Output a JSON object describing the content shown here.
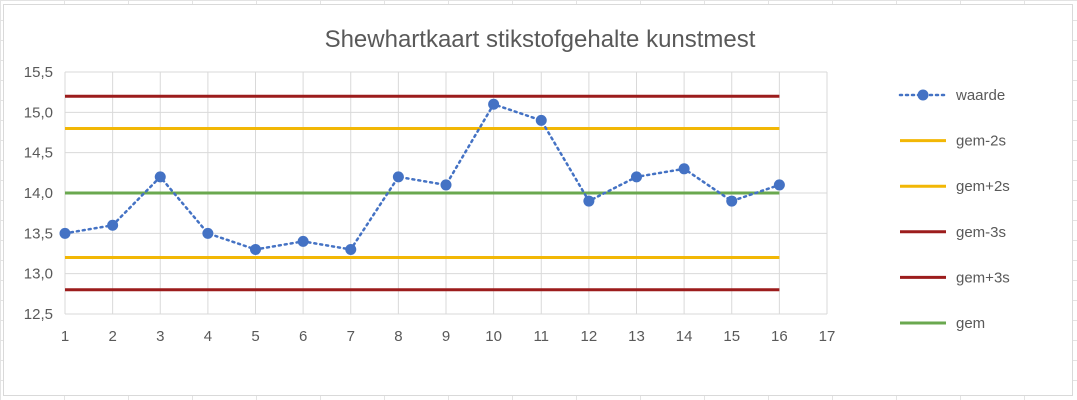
{
  "chart_data": {
    "type": "line",
    "title": "Shewhartkaart stikstofgehalte kunstmest",
    "xlabel": "",
    "ylabel": "",
    "x": [
      1,
      2,
      3,
      4,
      5,
      6,
      7,
      8,
      9,
      10,
      11,
      12,
      13,
      14,
      15,
      16
    ],
    "x_ticks": [
      "1",
      "2",
      "3",
      "4",
      "5",
      "6",
      "7",
      "8",
      "9",
      "10",
      "11",
      "12",
      "13",
      "14",
      "15",
      "16",
      "17"
    ],
    "xlim": [
      1,
      17
    ],
    "ylim": [
      12.5,
      15.5
    ],
    "y_ticks": [
      "12,5",
      "13,0",
      "13,5",
      "14,0",
      "14,5",
      "15,0",
      "15,5"
    ],
    "y_tick_values": [
      12.5,
      13.0,
      13.5,
      14.0,
      14.5,
      15.0,
      15.5
    ],
    "grid": true,
    "legend_position": "right",
    "series": [
      {
        "name": "waarde",
        "style": "dotted-markers",
        "color": "#4472c4",
        "values": [
          13.5,
          13.6,
          14.2,
          13.5,
          13.3,
          13.4,
          13.3,
          14.2,
          14.1,
          15.1,
          14.9,
          13.9,
          14.2,
          14.3,
          13.9,
          14.1
        ]
      },
      {
        "name": "gem-2s",
        "style": "solid",
        "color": "#f2b705",
        "constant": 13.2
      },
      {
        "name": "gem+2s",
        "style": "solid",
        "color": "#f2b705",
        "constant": 14.8
      },
      {
        "name": "gem-3s",
        "style": "solid",
        "color": "#9c1c1c",
        "constant": 12.8
      },
      {
        "name": "gem+3s",
        "style": "solid",
        "color": "#9c1c1c",
        "constant": 15.2
      },
      {
        "name": "gem",
        "style": "solid",
        "color": "#6aa84f",
        "constant": 14.0
      }
    ]
  }
}
